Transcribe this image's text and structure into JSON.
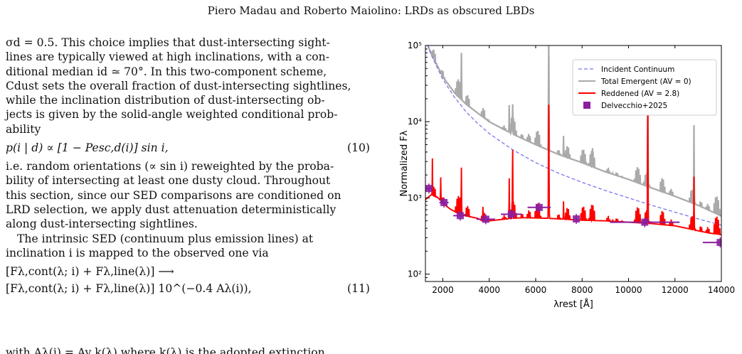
{
  "header": {
    "running_title": "Piero Madau and Roberto Maiolino: LRDs as obscured LBDs"
  },
  "left_column": {
    "para1_lines": [
      "σd = 0.5. This choice implies that dust-intersecting sight-",
      "lines are typically viewed at high inclinations, with a con-",
      "ditional median id ≃ 70°. In this two-component scheme,",
      "Cdust sets the overall fraction of dust-intersecting sightlines,",
      "while the inclination distribution of dust-intersecting ob-",
      "jects is given by the solid-angle weighted conditional prob-",
      "ability"
    ],
    "eq10": {
      "text": "p(i | d) ∝ [1 − Pesc,d(i)] sin i,",
      "number": "(10)"
    },
    "para2_lines": [
      "i.e. random orientations (∝ sin i) reweighted by the proba-",
      "bility of intersecting at least one dusty cloud. Throughout",
      "this section, since our SED comparisons are conditioned on",
      "LRD selection, we apply dust attenuation deterministically",
      "along dust-intersecting sightlines."
    ],
    "para3_lines": [
      "The intrinsic SED (continuum plus emission lines) at",
      "inclination i is mapped to the observed one via"
    ],
    "eq11_line1": "[Fλ,cont(λ; i) + Fλ,line(λ)]  ⟶",
    "eq11_line2": "[Fλ,cont(λ; i) + Fλ,line(λ)] 10^(−0.4 Aλ(i)),",
    "eq11_number": "(11)",
    "cut_line": "with Aλ(i) = Av k(λ) where k(λ) is the adopted extinction"
  },
  "chart_data": {
    "type": "line",
    "xlabel": "λrest [Å]",
    "ylabel": "Normalized Fλ",
    "xlim": [
      1250,
      14000
    ],
    "ylim": [
      80,
      100000
    ],
    "yscale": "log",
    "xticks": [
      2000,
      4000,
      6000,
      8000,
      10000,
      12000,
      14000
    ],
    "xtick_labels": [
      "2000",
      "4000",
      "6000",
      "8000",
      "10000",
      "12000",
      "14000"
    ],
    "yticks": [
      100,
      1000,
      10000,
      100000
    ],
    "ytick_labels": [
      "10²",
      "10³",
      "10⁴",
      "10⁵"
    ],
    "legend_position": "top-right",
    "legend": [
      "Incident Continuum",
      "Total Emergent (AV = 0)",
      "Reddened (AV = 2.8)",
      "Delvecchio+2025"
    ],
    "colors": {
      "incident": "#7777ee",
      "emergent": "#aaaaaa",
      "reddened": "#ff0000",
      "data": "#8b1f9e"
    },
    "series": [
      {
        "name": "Incident Continuum",
        "x": [
          1250,
          1500,
          2000,
          2500,
          3000,
          3500,
          4000,
          5000,
          6000,
          7000,
          8000,
          9000,
          10000,
          11000,
          12000,
          13000,
          14000
        ],
        "y": [
          120000,
          75000,
          36000,
          21000,
          13500,
          9500,
          7000,
          4300,
          2900,
          2100,
          1600,
          1250,
          1000,
          800,
          650,
          530,
          440
        ]
      },
      {
        "name": "Total Emergent (AV = 0)",
        "x": [
          1250,
          1500,
          2000,
          2500,
          3000,
          3500,
          4000,
          5000,
          6000,
          7000,
          8000,
          9000,
          10000,
          11000,
          12000,
          13000,
          14000
        ],
        "y": [
          120000,
          78000,
          39000,
          24000,
          17000,
          13000,
          10000,
          6900,
          5000,
          3700,
          2900,
          2200,
          1750,
          1350,
          1050,
          800,
          580
        ]
      },
      {
        "name": "Reddened (AV = 2.8)",
        "x": [
          1250,
          1500,
          1800,
          2000,
          2300,
          2600,
          3000,
          3500,
          3700,
          4000,
          4500,
          5000,
          5500,
          6000,
          6500,
          7000,
          7500,
          8000,
          8500,
          9000,
          9500,
          10000,
          10500,
          11000,
          11500,
          12000,
          12500,
          13000,
          13500,
          14000
        ],
        "y": [
          950,
          1100,
          1000,
          850,
          720,
          640,
          580,
          540,
          500,
          500,
          520,
          540,
          550,
          545,
          540,
          530,
          520,
          510,
          505,
          500,
          490,
          480,
          470,
          460,
          445,
          430,
          400,
          370,
          345,
          330
        ]
      },
      {
        "name": "Delvecchio+2025",
        "x": [
          1400,
          2050,
          2750,
          3850,
          4950,
          6150,
          7750,
          10700,
          13950
        ],
        "y": [
          1330,
          870,
          585,
          525,
          610,
          750,
          530,
          480,
          260
        ],
        "xerr": [
          150,
          200,
          300,
          400,
          450,
          500,
          0,
          1500,
          750
        ]
      }
    ],
    "line_features": {
      "emergent": [
        [
          2800,
          80000
        ],
        [
          3727,
          14000
        ],
        [
          4861,
          18000
        ],
        [
          4959,
          12000
        ],
        [
          5007,
          23000
        ],
        [
          6563,
          170000
        ],
        [
          7200,
          6500
        ],
        [
          8450,
          4500
        ],
        [
          10830,
          50000
        ],
        [
          12820,
          9000
        ]
      ],
      "reddened": [
        [
          1550,
          3300
        ],
        [
          1909,
          2000
        ],
        [
          2800,
          2500
        ],
        [
          3727,
          900
        ],
        [
          4861,
          2000
        ],
        [
          5007,
          6200
        ],
        [
          6563,
          25000
        ],
        [
          7200,
          900
        ],
        [
          8450,
          800
        ],
        [
          10830,
          15000
        ],
        [
          12820,
          1900
        ]
      ]
    }
  }
}
